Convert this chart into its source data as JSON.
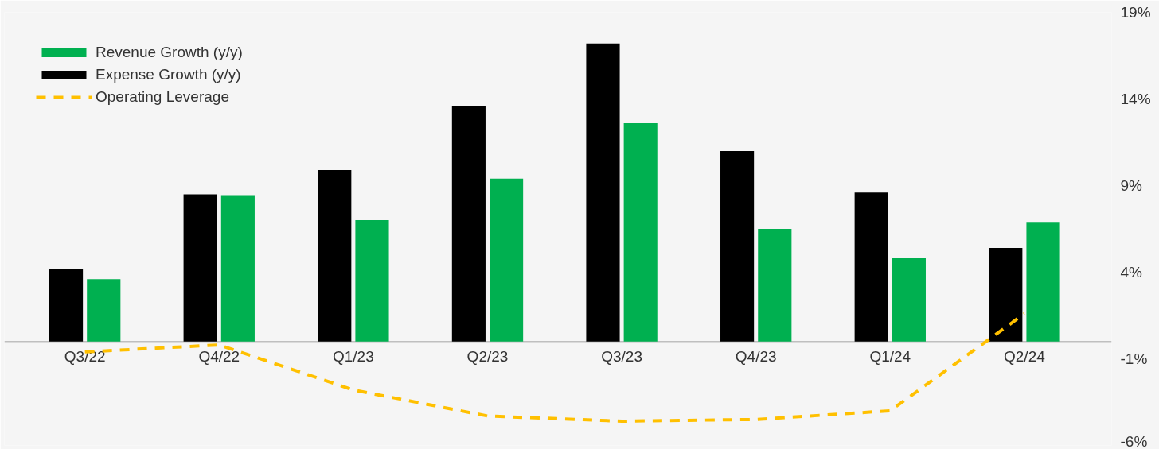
{
  "chart_data": {
    "type": "bar",
    "categories": [
      "Q3/22",
      "Q4/22",
      "Q1/23",
      "Q2/23",
      "Q3/23",
      "Q4/23",
      "Q1/24",
      "Q2/24"
    ],
    "series": [
      {
        "name": "Revenue Growth (y/y)",
        "color": "#00b050",
        "values": [
          3.6,
          8.4,
          7.0,
          9.4,
          12.6,
          6.5,
          4.8,
          6.9
        ]
      },
      {
        "name": "Expense Growth (y/y)",
        "color": "#000000",
        "values": [
          4.2,
          8.5,
          9.9,
          13.6,
          17.2,
          11.0,
          8.6,
          5.4
        ]
      },
      {
        "name": "Operating Leverage",
        "color": "#ffc000",
        "type": "line",
        "line_style": "dashed",
        "values": [
          -0.6,
          -0.2,
          -2.8,
          -4.3,
          -4.6,
          -4.5,
          -4.0,
          1.6
        ]
      }
    ],
    "ylim": [
      -6,
      19
    ],
    "yticks": [
      {
        "value": -6,
        "label": "-6%"
      },
      {
        "value": -1,
        "label": "-1%"
      },
      {
        "value": 4,
        "label": "4%"
      },
      {
        "value": 9,
        "label": "9%"
      },
      {
        "value": 14,
        "label": "14%"
      },
      {
        "value": 19,
        "label": "19%"
      }
    ],
    "grid": false,
    "legend": "top left"
  }
}
